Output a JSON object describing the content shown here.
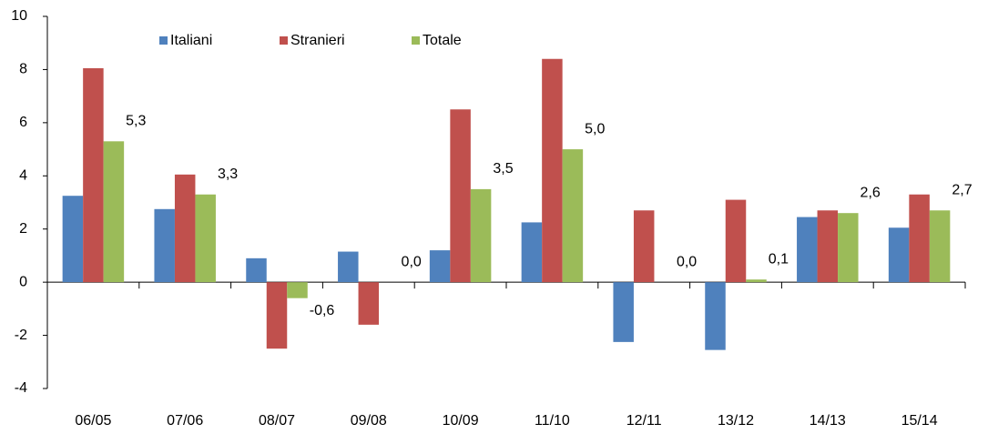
{
  "chart_data": {
    "type": "bar",
    "categories": [
      "06/05",
      "07/06",
      "08/07",
      "09/08",
      "10/09",
      "11/10",
      "12/11",
      "13/12",
      "14/13",
      "15/14"
    ],
    "series": [
      {
        "name": "Italiani",
        "color": "#4f81bd",
        "values": [
          3.25,
          2.75,
          0.9,
          1.15,
          1.2,
          2.25,
          -2.25,
          -2.55,
          2.45,
          2.05
        ]
      },
      {
        "name": "Stranieri",
        "color": "#c0504d",
        "values": [
          8.05,
          4.05,
          -2.5,
          -1.6,
          6.5,
          8.4,
          2.7,
          3.1,
          2.7,
          3.3
        ]
      },
      {
        "name": "Totale",
        "color": "#9bbb59",
        "values": [
          5.3,
          3.3,
          -0.6,
          0.0,
          3.5,
          5.0,
          0.0,
          0.1,
          2.6,
          2.7
        ],
        "value_labels": [
          "5,3",
          "3,3",
          "-0,6",
          "0,0",
          "3,5",
          "5,0",
          "0,0",
          "0,1",
          "2,6",
          "2,7"
        ]
      }
    ],
    "ylim": [
      -4,
      10
    ],
    "yticks": [
      -4,
      -2,
      0,
      2,
      4,
      6,
      8,
      10
    ],
    "grid": false
  }
}
